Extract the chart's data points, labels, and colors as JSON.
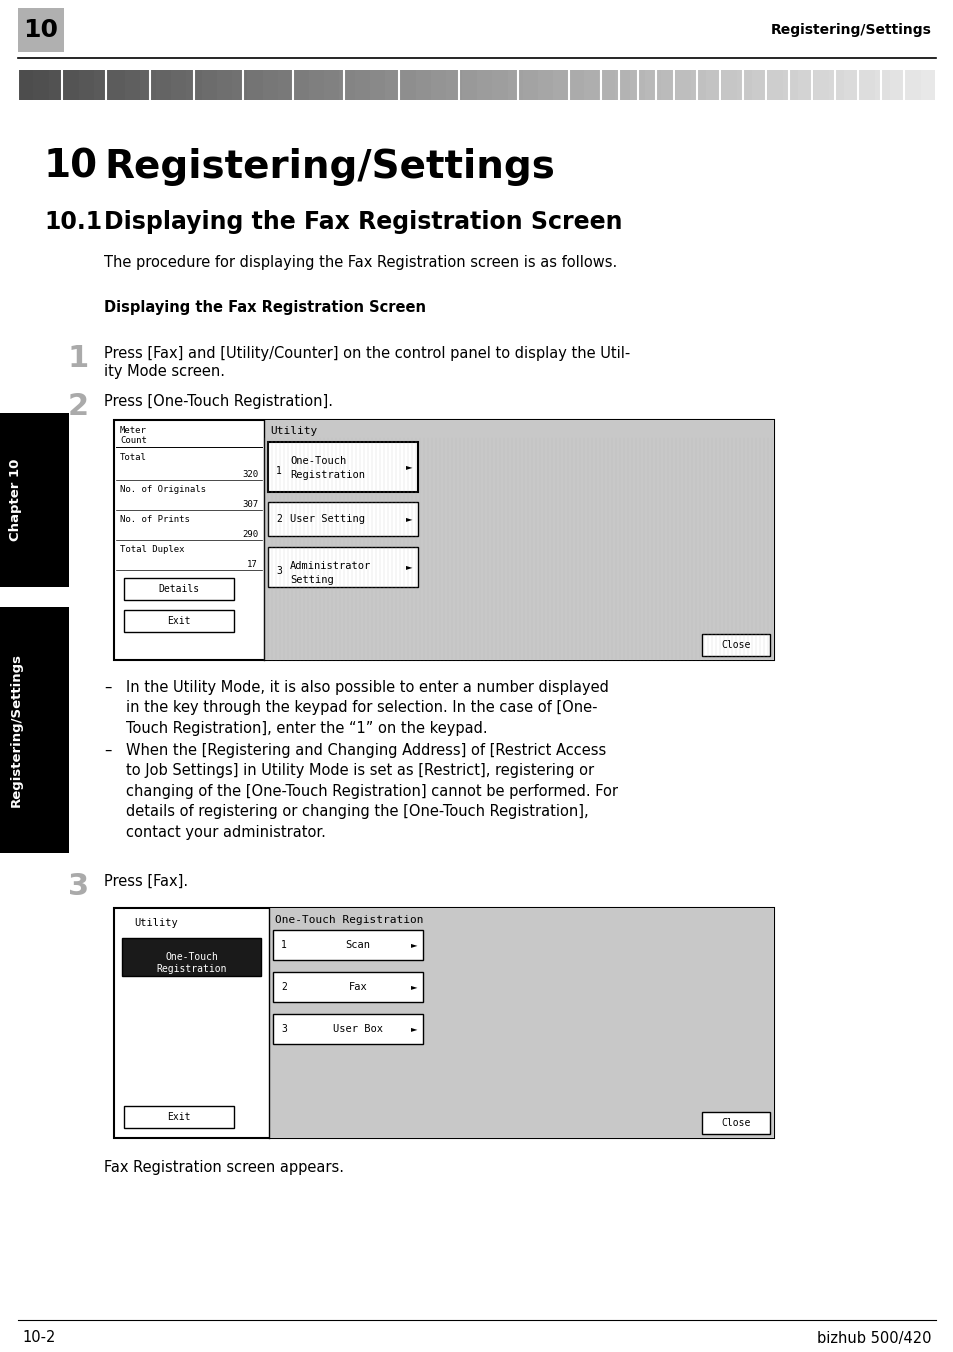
{
  "page_num": "10",
  "header_text": "Registering/Settings",
  "chapter_title_num": "10",
  "chapter_title_text": "Registering/Settings",
  "section_num": "10.1",
  "section_text": "Displaying the Fax Registration Screen",
  "intro_text": "The procedure for displaying the Fax Registration screen is as follows.",
  "subsection_title": "Displaying the Fax Registration Screen",
  "step1_text_line1": "Press [Fax] and [Utility/Counter] on the control panel to display the Util-",
  "step1_text_line2": "ity Mode screen.",
  "step2_text": "Press [One-Touch Registration].",
  "step3_text": "Press [Fax].",
  "note1_dash": "–",
  "note1_text": "In the Utility Mode, it is also possible to enter a number displayed\nin the key through the keypad for selection. In the case of [One-\nTouch Registration], enter the “1” on the keypad.",
  "note2_dash": "–",
  "note2_text": "When the [Registering and Changing Address] of [Restrict Access\nto Job Settings] in Utility Mode is set as [Restrict], registering or\nchanging of the [One-Touch Registration] cannot be performed. For\ndetails of registering or changing the [One-Touch Registration],\ncontact your administrator.",
  "after_step3": "Fax Registration screen appears.",
  "footer_left": "10-2",
  "footer_right": "bizhub 500/420",
  "side_ch_label": "Chapter 10",
  "side_reg_label": "Registering/Settings",
  "bg_color": "#ffffff"
}
